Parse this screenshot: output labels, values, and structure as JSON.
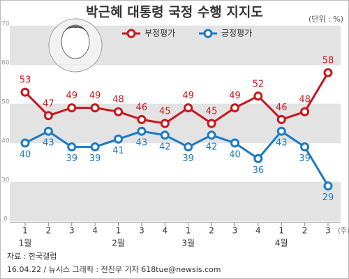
{
  "chart_data": {
    "type": "line",
    "title": "박근혜 대통령 국정 수행 지지도",
    "unit": "(단위 : %)",
    "categories": [
      "1",
      "2",
      "3",
      "4",
      "1",
      "3",
      "4",
      "1",
      "2",
      "3",
      "4",
      "1",
      "2",
      "3"
    ],
    "groups": [
      "1월",
      null,
      null,
      null,
      "2월",
      null,
      null,
      "3월",
      null,
      null,
      null,
      "4월",
      null,
      null
    ],
    "x_suffix": "(주)",
    "series": [
      {
        "name": "부정평가",
        "color": "#c8161d",
        "values": [
          53,
          47,
          49,
          49,
          48,
          46,
          45,
          49,
          45,
          49,
          52,
          46,
          48,
          58
        ]
      },
      {
        "name": "긍정평가",
        "color": "#1a7ac4",
        "values": [
          40,
          43,
          39,
          39,
          41,
          43,
          42,
          39,
          42,
          40,
          36,
          43,
          39,
          29
        ]
      }
    ],
    "ylim": [
      0,
      70
    ],
    "yticks": [
      0,
      30,
      40,
      50,
      60,
      70
    ],
    "ybreak": [
      0,
      20
    ],
    "source": "자료 : 한국갤럽",
    "credit": "16.04.22 / 뉴시스 그래픽 : 전진우 기자 618tue@newsis.com"
  }
}
